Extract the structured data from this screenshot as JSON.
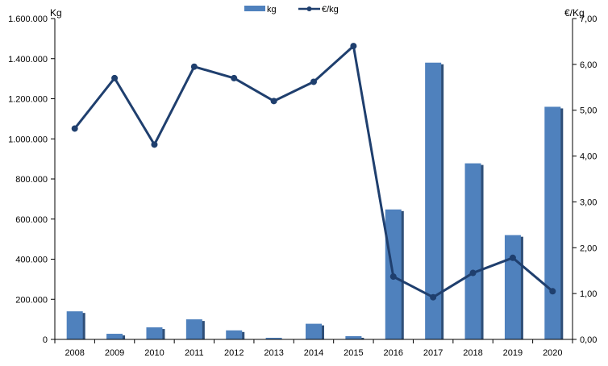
{
  "chart_data": {
    "type": "bar",
    "categories": [
      "2008",
      "2009",
      "2010",
      "2011",
      "2012",
      "2013",
      "2014",
      "2015",
      "2016",
      "2017",
      "2018",
      "2019",
      "2020"
    ],
    "series": [
      {
        "name": "kg",
        "type": "bar",
        "axis": "left",
        "values": [
          140000,
          28000,
          60000,
          100000,
          45000,
          8000,
          78000,
          16000,
          648000,
          1380000,
          878000,
          520000,
          1160000
        ]
      },
      {
        "name": "€/kg",
        "type": "line",
        "axis": "right",
        "values": [
          4.6,
          5.7,
          4.25,
          5.95,
          5.7,
          5.2,
          5.62,
          6.4,
          1.37,
          0.92,
          1.45,
          1.78,
          1.05
        ]
      }
    ],
    "ylabel_left": "Kg",
    "ylabel_right": "€/Kg",
    "ylim_left": [
      0,
      1600000
    ],
    "ylim_right": [
      0,
      7
    ],
    "yticks_left": [
      "0",
      "200.000",
      "400.000",
      "600.000",
      "800.000",
      "1.000.000",
      "1.200.000",
      "1.400.000",
      "1.600.000"
    ],
    "yticks_right": [
      "0,00",
      "1,00",
      "2,00",
      "3,00",
      "4,00",
      "5,00",
      "6,00",
      "7,00"
    ],
    "grid": false,
    "legend": "top-center",
    "colors": {
      "bar": "#4f81bd",
      "bar_shadow": "#2f4f78",
      "line": "#1f3f6e"
    }
  }
}
